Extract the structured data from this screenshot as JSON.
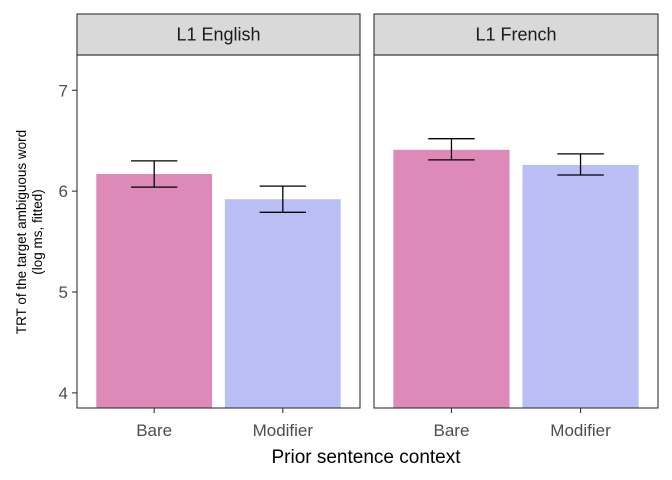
{
  "chart_data": {
    "type": "bar",
    "xlabel": "Prior sentence context",
    "ylabel_lines": [
      "TRT of the target ambiguous word",
      "(log ms, fitted)"
    ],
    "categories": [
      "Bare",
      "Modifier"
    ],
    "ylim": [
      3.85,
      7.35
    ],
    "yticks": [
      4,
      5,
      6,
      7
    ],
    "grid": false,
    "legend": "none",
    "colors": {
      "Bare": "#dd8ab9",
      "Modifier": "#b9bff5"
    },
    "panels": [
      {
        "facet_label": "L1 English",
        "bars": [
          {
            "category": "Bare",
            "value": 6.17,
            "err_low": 6.04,
            "err_high": 6.3
          },
          {
            "category": "Modifier",
            "value": 5.92,
            "err_low": 5.79,
            "err_high": 6.05
          }
        ]
      },
      {
        "facet_label": "L1 French",
        "bars": [
          {
            "category": "Bare",
            "value": 6.41,
            "err_low": 6.31,
            "err_high": 6.52
          },
          {
            "category": "Modifier",
            "value": 6.26,
            "err_low": 6.16,
            "err_high": 6.37
          }
        ]
      }
    ]
  }
}
